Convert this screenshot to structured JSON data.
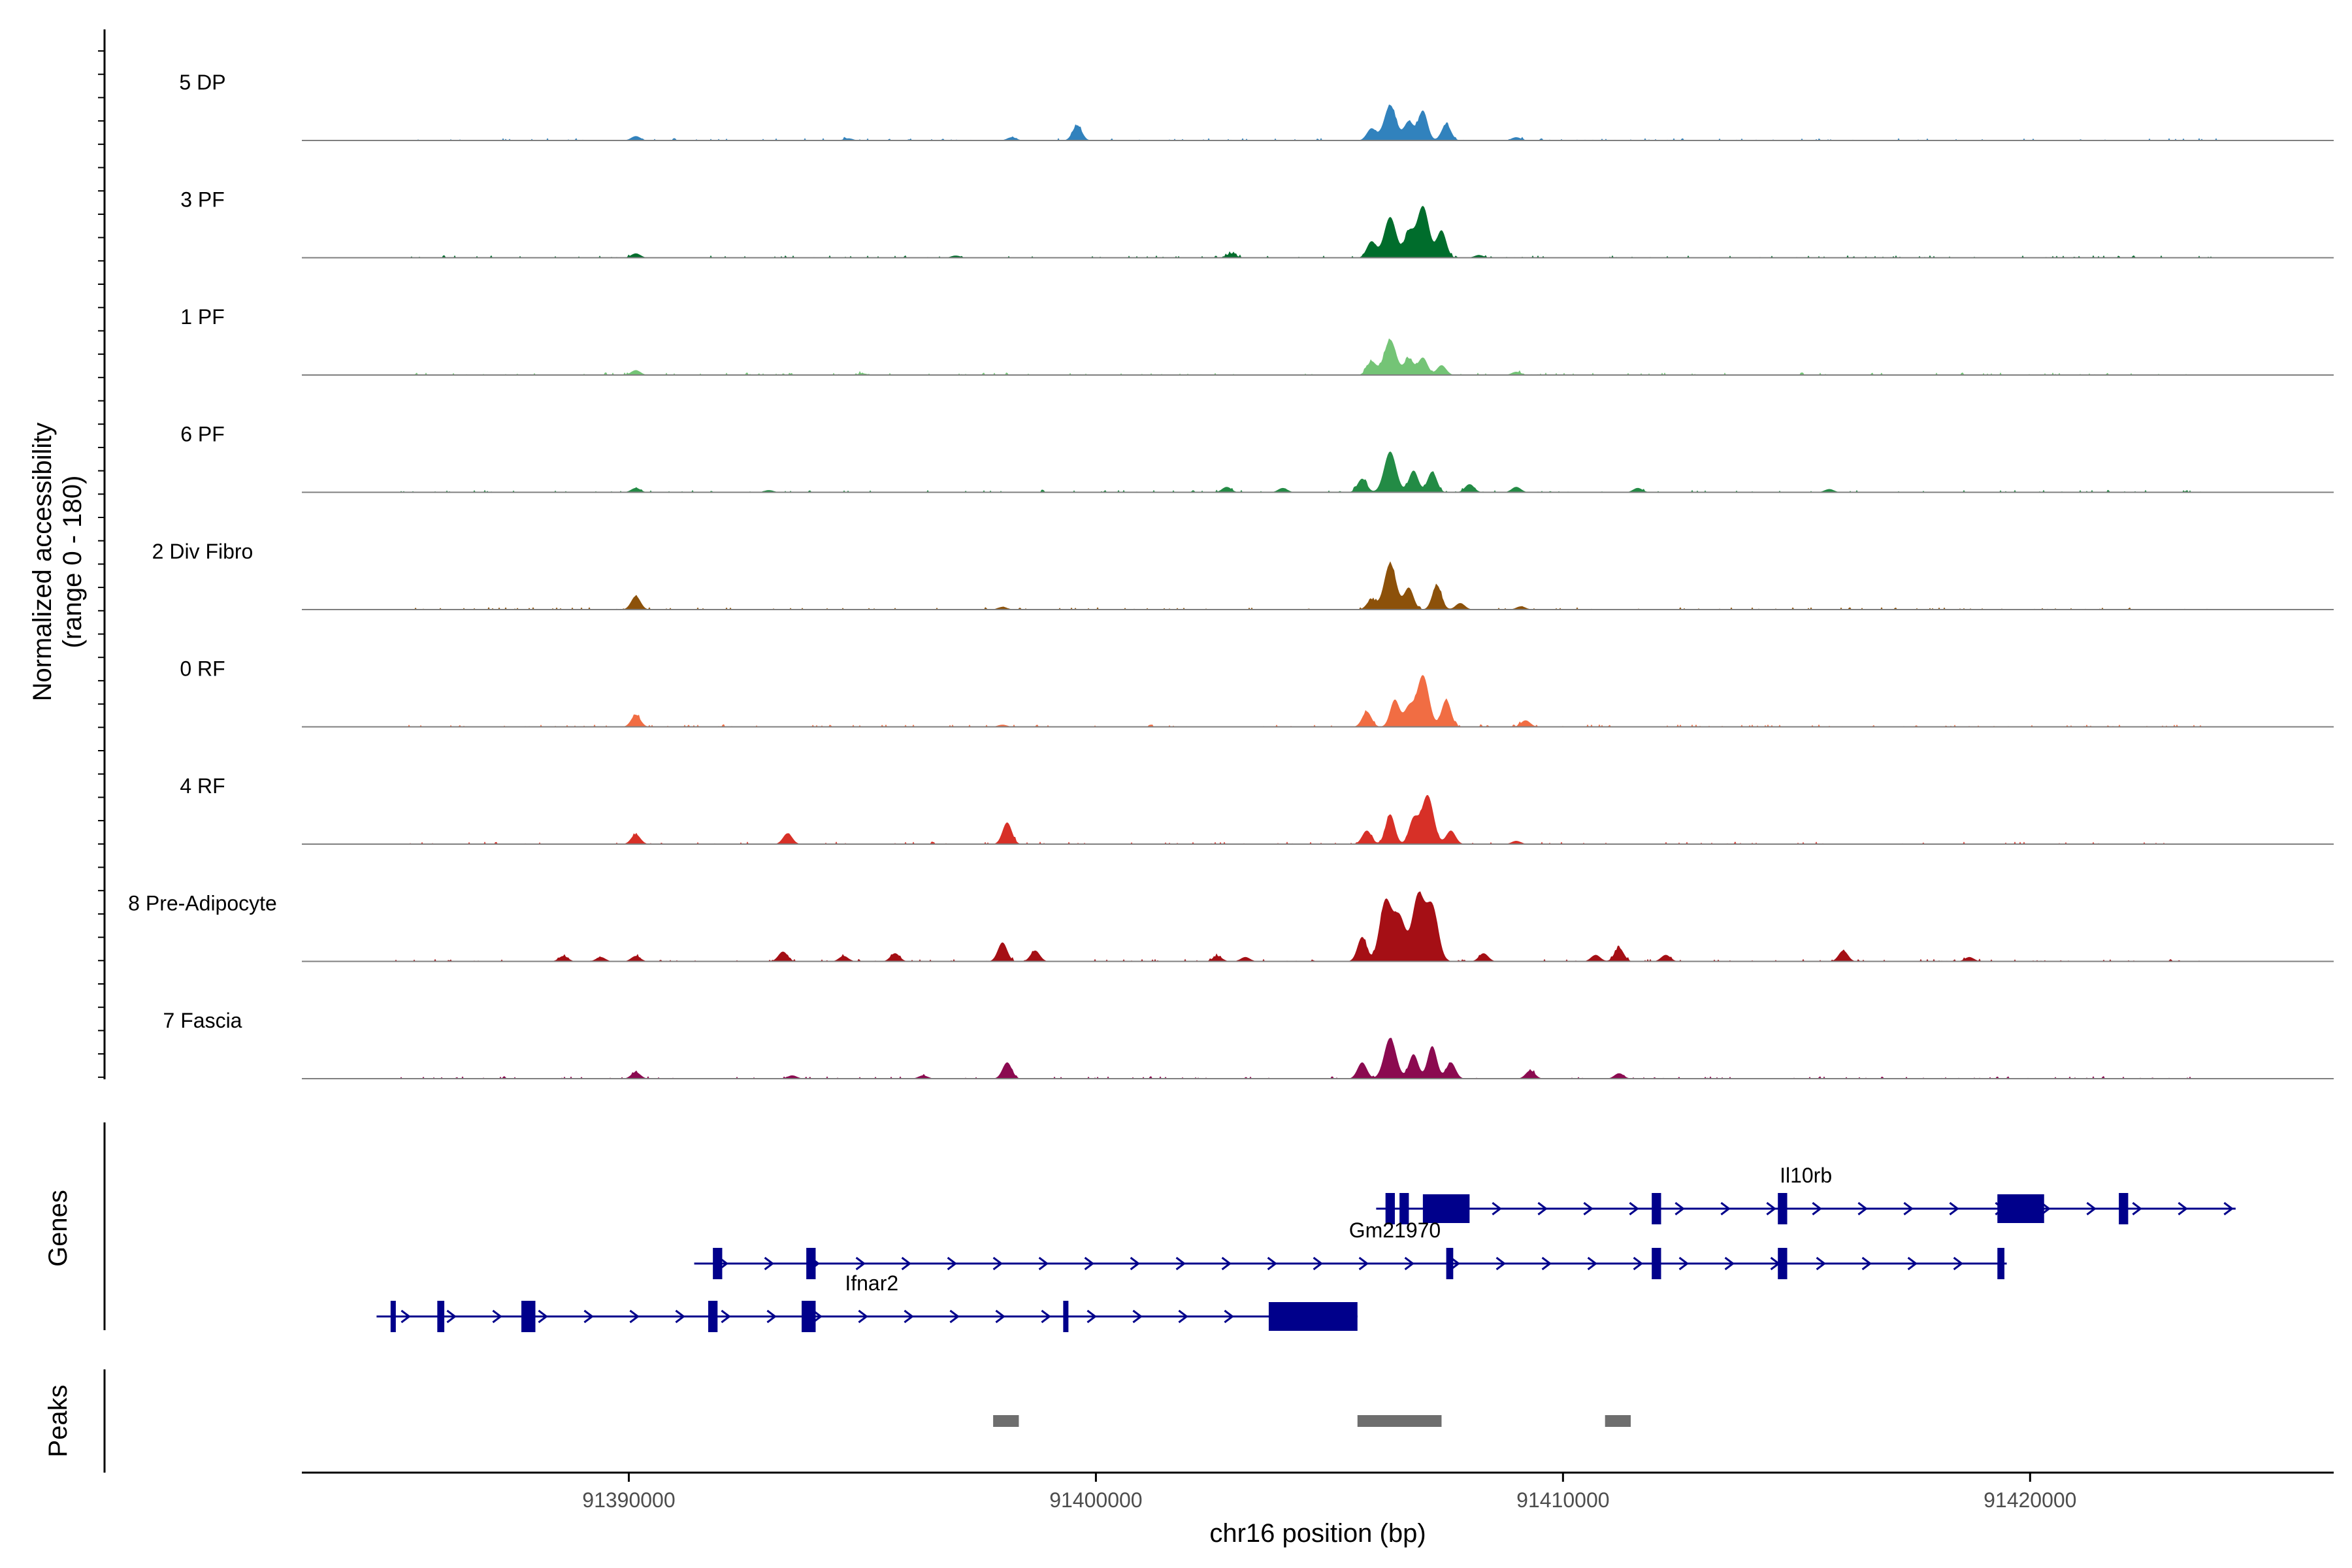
{
  "chart_data": {
    "type": "area",
    "title": "",
    "ylabel": "Normalized accessibility",
    "ylabel_range": "(range 0 - 180)",
    "xlabel": "chr16 position (bp)",
    "xlim": [
      91383000,
      91426500
    ],
    "ylim": [
      0,
      180
    ],
    "x_ticks": [
      91390000,
      91400000,
      91410000,
      91420000
    ],
    "x_tick_labels": [
      "91390000",
      "91400000",
      "91410000",
      "91420000"
    ],
    "tracks": [
      {
        "name": "5 DP",
        "color": "#3182bd",
        "peaks": [
          [
            91390150,
            8
          ],
          [
            91394700,
            4
          ],
          [
            91398200,
            6
          ],
          [
            91399600,
            28
          ],
          [
            91405900,
            22
          ],
          [
            91406300,
            65
          ],
          [
            91406700,
            35
          ],
          [
            91407000,
            55
          ],
          [
            91407500,
            30
          ],
          [
            91409000,
            6
          ]
        ]
      },
      {
        "name": "3 PF",
        "color": "#006d2c",
        "peaks": [
          [
            91390150,
            8
          ],
          [
            91397000,
            4
          ],
          [
            91402900,
            8
          ],
          [
            91405900,
            30
          ],
          [
            91406300,
            75
          ],
          [
            91406700,
            45
          ],
          [
            91407000,
            95
          ],
          [
            91407400,
            50
          ],
          [
            91408200,
            5
          ]
        ]
      },
      {
        "name": "1 PF",
        "color": "#74c476",
        "peaks": [
          [
            91390150,
            9
          ],
          [
            91395000,
            3
          ],
          [
            91405900,
            25
          ],
          [
            91406300,
            65
          ],
          [
            91406700,
            30
          ],
          [
            91407000,
            32
          ],
          [
            91407400,
            18
          ],
          [
            91409000,
            6
          ]
        ]
      },
      {
        "name": "6 PF",
        "color": "#238b45",
        "peaks": [
          [
            91390150,
            8
          ],
          [
            91393000,
            4
          ],
          [
            91402800,
            10
          ],
          [
            91404000,
            8
          ],
          [
            91405700,
            25
          ],
          [
            91406300,
            75
          ],
          [
            91406800,
            40
          ],
          [
            91407200,
            38
          ],
          [
            91408000,
            15
          ],
          [
            91409000,
            10
          ],
          [
            91411600,
            8
          ],
          [
            91415700,
            6
          ]
        ]
      },
      {
        "name": "2 Div Fibro",
        "color": "#8c510a",
        "peaks": [
          [
            91390150,
            25
          ],
          [
            91398000,
            5
          ],
          [
            91405900,
            18
          ],
          [
            91406300,
            85
          ],
          [
            91406700,
            40
          ],
          [
            91407300,
            45
          ],
          [
            91407800,
            12
          ],
          [
            91409100,
            6
          ]
        ]
      },
      {
        "name": "0 RF",
        "color": "#f16d43",
        "peaks": [
          [
            91390150,
            22
          ],
          [
            91398000,
            4
          ],
          [
            91405800,
            28
          ],
          [
            91406400,
            50
          ],
          [
            91406700,
            35
          ],
          [
            91407000,
            95
          ],
          [
            91407500,
            50
          ],
          [
            91409200,
            12
          ]
        ]
      },
      {
        "name": "4 RF",
        "color": "#d73027",
        "peaks": [
          [
            91390150,
            18
          ],
          [
            91393400,
            20
          ],
          [
            91398100,
            40
          ],
          [
            91405800,
            25
          ],
          [
            91406300,
            55
          ],
          [
            91406800,
            45
          ],
          [
            91407100,
            90
          ],
          [
            91407600,
            25
          ],
          [
            91409000,
            6
          ]
        ]
      },
      {
        "name": "8 Pre-Adipocyte",
        "color": "#a50f15",
        "peaks": [
          [
            91388600,
            10
          ],
          [
            91389400,
            8
          ],
          [
            91390150,
            10
          ],
          [
            91393300,
            18
          ],
          [
            91394600,
            10
          ],
          [
            91395700,
            15
          ],
          [
            91398000,
            35
          ],
          [
            91398700,
            20
          ],
          [
            91402600,
            10
          ],
          [
            91403200,
            8
          ],
          [
            91405700,
            45
          ],
          [
            91406200,
            110
          ],
          [
            91406500,
            80
          ],
          [
            91406900,
            120
          ],
          [
            91407200,
            100
          ],
          [
            91408300,
            15
          ],
          [
            91410700,
            12
          ],
          [
            91411200,
            25
          ],
          [
            91412200,
            12
          ],
          [
            91416000,
            20
          ],
          [
            91418700,
            8
          ]
        ]
      },
      {
        "name": "7 Fascia",
        "color": "#8b0a50",
        "peaks": [
          [
            91390150,
            12
          ],
          [
            91393500,
            6
          ],
          [
            91396300,
            6
          ],
          [
            91398100,
            30
          ],
          [
            91405700,
            30
          ],
          [
            91406300,
            75
          ],
          [
            91406800,
            45
          ],
          [
            91407200,
            60
          ],
          [
            91407600,
            30
          ],
          [
            91409300,
            15
          ],
          [
            91411200,
            10
          ]
        ]
      }
    ],
    "genes_label": "Genes",
    "genes": [
      {
        "name": "Il10rb",
        "label_x": 91415200,
        "row": 0,
        "start": 91406000,
        "end": 91424400,
        "exons": [
          [
            91406200,
            91406400
          ],
          [
            91406500,
            91406700
          ],
          [
            91407000,
            91408000
          ],
          [
            91411900,
            91412100
          ],
          [
            91414600,
            91414800
          ],
          [
            91419300,
            91420300
          ],
          [
            91421900,
            91422100
          ]
        ]
      },
      {
        "name": "Gm21970",
        "label_x": 91406400,
        "row": 1,
        "start": 91391400,
        "end": 91419500,
        "exons": [
          [
            91391800,
            91392000
          ],
          [
            91393800,
            91394000
          ],
          [
            91407500,
            91407650
          ],
          [
            91411900,
            91412100
          ],
          [
            91414600,
            91414800
          ],
          [
            91419300,
            91419450
          ]
        ]
      },
      {
        "name": "Ifnar2",
        "label_x": 91395200,
        "row": 2,
        "start": 91384600,
        "end": 91405600,
        "exons": [
          [
            91384900,
            91384950
          ],
          [
            91385900,
            91386050
          ],
          [
            91387700,
            91388000
          ],
          [
            91391700,
            91391900
          ],
          [
            91393700,
            91394000
          ],
          [
            91399300,
            91399400
          ],
          [
            91403700,
            91405600
          ]
        ]
      }
    ],
    "peaks_label": "Peaks",
    "peak_regions": [
      [
        91397800,
        91398350
      ],
      [
        91405600,
        91407400
      ],
      [
        91410900,
        91411450
      ]
    ]
  }
}
